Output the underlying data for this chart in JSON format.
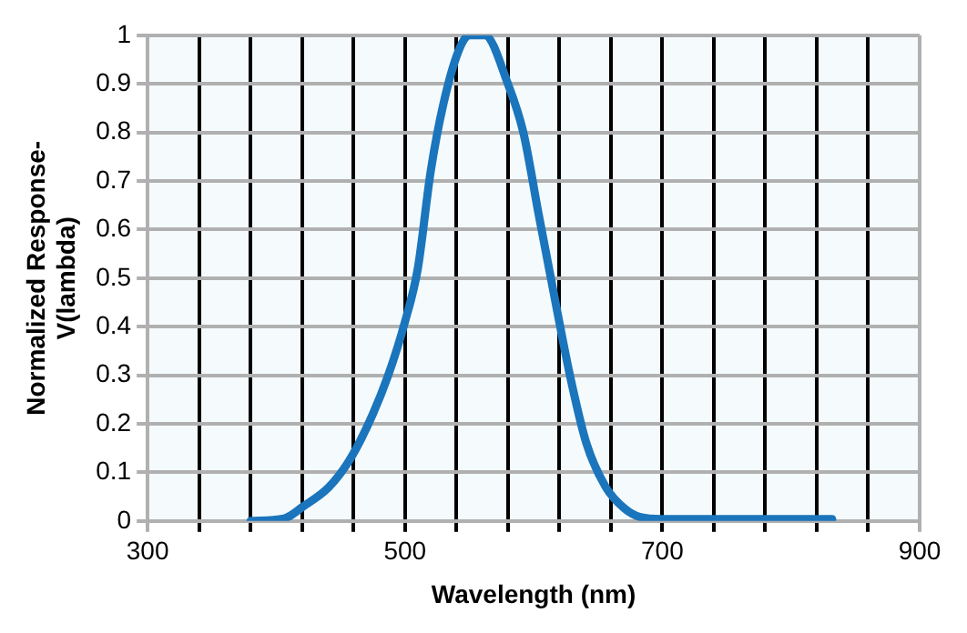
{
  "chart_data": {
    "type": "line",
    "xlabel": "Wavelength (nm)",
    "ylabel": "Normalized Response-V(lambda)",
    "x": [
      380,
      406,
      421,
      441,
      458,
      475,
      487,
      500,
      510,
      520,
      530,
      542,
      550,
      562,
      580,
      592,
      604,
      617,
      629,
      641,
      656,
      671,
      683,
      700,
      832
    ],
    "series": [
      {
        "color": "#1b75bc",
        "values": [
          0,
          0.005,
          0.03,
          0.07,
          0.13,
          0.22,
          0.3,
          0.41,
          0.52,
          0.72,
          0.86,
          0.97,
          1,
          1,
          0.9,
          0.8,
          0.63,
          0.45,
          0.29,
          0.16,
          0.07,
          0.025,
          0.008,
          0.004,
          0.004
        ]
      }
    ],
    "xlim": [
      300,
      900
    ],
    "xticks": [
      300,
      {
        "value": 340,
        "label": null
      },
      {
        "value": 380,
        "label": null
      },
      {
        "value": 420,
        "label": null
      },
      {
        "value": 460,
        "label": null
      },
      500,
      {
        "value": 540,
        "label": null
      },
      {
        "value": 580,
        "label": null
      },
      {
        "value": 620,
        "label": null
      },
      {
        "value": 660,
        "label": null
      },
      700,
      {
        "value": 740,
        "label": null
      },
      {
        "value": 780,
        "label": null
      },
      {
        "value": 820,
        "label": null
      },
      {
        "value": 860,
        "label": null
      },
      900
    ],
    "ylim": [
      0,
      1
    ],
    "yticks": [
      0,
      0.1,
      0.2,
      0.3,
      0.4,
      0.5,
      0.6,
      0.7,
      0.8,
      0.9,
      1
    ],
    "grid": true,
    "legend": false,
    "marker": "none",
    "line_style": "solid"
  }
}
